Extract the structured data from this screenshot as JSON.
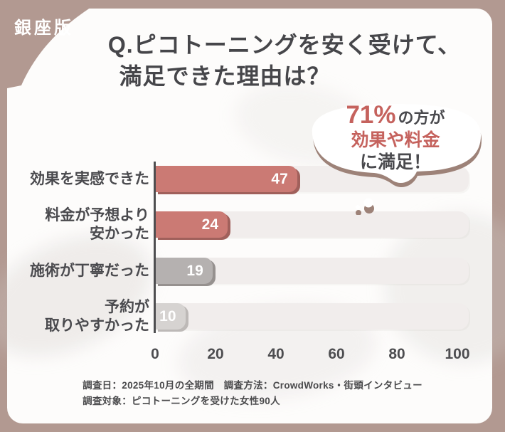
{
  "frame": {
    "badge": "銀座版",
    "frame_color": "#b29991",
    "card_color": "#fdfcfb"
  },
  "title": {
    "line1": "Q.ピコトーニングを安く受けて、",
    "line2": "満足できた理由は？"
  },
  "bubble": {
    "percent": "71%",
    "percent_suffix": "の方が",
    "highlight": "効果や料金",
    "tail_text": "に満足！",
    "accent_color": "#c5625d",
    "outline_color": "#9d8278"
  },
  "chart_data": {
    "type": "bar",
    "orientation": "horizontal",
    "title": "Q.ピコトーニングを安く受けて、満足できた理由は？",
    "categories": [
      "効果を実感できた",
      "料金が予想より安かった",
      "施術が丁寧だった",
      "予約が取りやすかった"
    ],
    "category_label_lines": [
      [
        "効果を実感できた"
      ],
      [
        "料金が予想より",
        "安かった"
      ],
      [
        "施術が丁寧だった"
      ],
      [
        "予約が",
        "取りやすかった"
      ]
    ],
    "values": [
      47,
      24,
      19,
      10
    ],
    "bar_colors": [
      "#cb7a74",
      "#cb7a74",
      "#b5b1b0",
      "#d6d3d1"
    ],
    "bar_shadow_colors": [
      "#a0605b",
      "#a0605b",
      "#96918f",
      "#bdb9b7"
    ],
    "value_label_color": "#ffffff",
    "track_color": "#f1edec",
    "xlabel": "",
    "ylabel": "",
    "xlim": [
      0,
      100
    ],
    "x_ticks": [
      0,
      20,
      40,
      60,
      80,
      100
    ],
    "grid": false,
    "legend": false
  },
  "footer": {
    "line1": "調査日：2025年10月の全期間　調査方法：CrowdWorks・街頭インタビュー",
    "line2": "調査対象：ピコトーニングを受けた女性90人"
  }
}
